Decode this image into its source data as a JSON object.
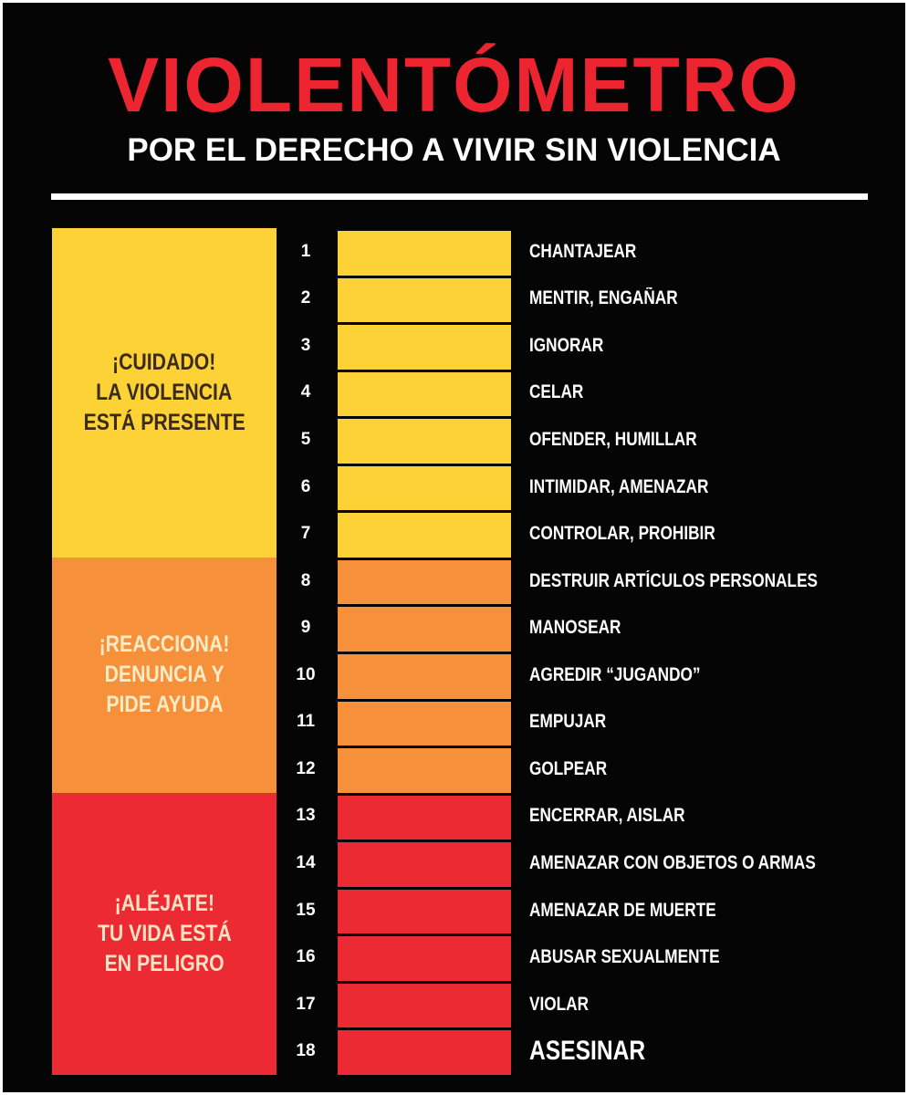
{
  "header": {
    "title": "VIOLENTÓMETRO",
    "subtitle": "POR EL DERECHO A VIVIR SIN VIOLENCIA"
  },
  "zones": [
    {
      "label": [
        "¡CUIDADO!",
        "LA VIOLENCIA",
        "ESTÁ PRESENTE"
      ],
      "color": "#fdd236",
      "label_color": "#3b2b1c",
      "items": [
        {
          "number": 1,
          "text": "CHANTAJEAR"
        },
        {
          "number": 2,
          "text": "MENTIR, ENGAÑAR"
        },
        {
          "number": 3,
          "text": "IGNORAR"
        },
        {
          "number": 4,
          "text": "CELAR"
        },
        {
          "number": 5,
          "text": "OFENDER, HUMILLAR"
        },
        {
          "number": 6,
          "text": "INTIMIDAR, AMENAZAR"
        },
        {
          "number": 7,
          "text": "CONTROLAR, PROHIBIR"
        }
      ]
    },
    {
      "label": [
        "¡REACCIONA!",
        "DENUNCIA Y",
        "PIDE AYUDA"
      ],
      "color": "#f7903a",
      "label_color": "#fdebc6",
      "items": [
        {
          "number": 8,
          "text": "DESTRUIR ARTÍCULOS PERSONALES"
        },
        {
          "number": 9,
          "text": "MANOSEAR"
        },
        {
          "number": 10,
          "text": "AGREDIR “JUGANDO”"
        },
        {
          "number": 11,
          "text": "EMPUJAR"
        },
        {
          "number": 12,
          "text": "GOLPEAR"
        }
      ]
    },
    {
      "label": [
        "¡ALÉJATE!",
        "TU VIDA ESTÁ",
        "EN PELIGRO"
      ],
      "color": "#ec2a33",
      "label_color": "#fde3c4",
      "items": [
        {
          "number": 13,
          "text": "ENCERRAR, AISLAR"
        },
        {
          "number": 14,
          "text": "AMENAZAR CON OBJETOS O ARMAS"
        },
        {
          "number": 15,
          "text": "AMENAZAR DE MUERTE"
        },
        {
          "number": 16,
          "text": "ABUSAR SEXUALMENTE"
        },
        {
          "number": 17,
          "text": "VIOLAR"
        },
        {
          "number": 18,
          "text": "ASESINAR"
        }
      ]
    }
  ]
}
